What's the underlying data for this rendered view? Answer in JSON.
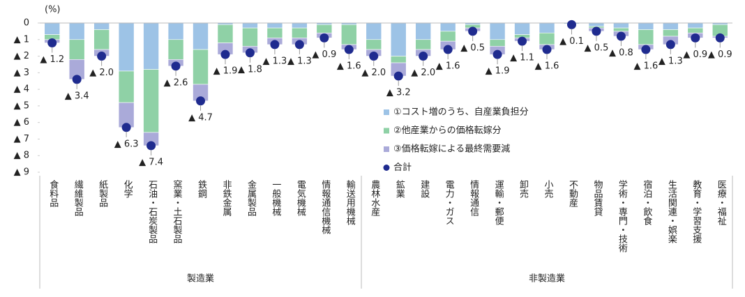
{
  "chart_data": {
    "type": "stacked_bar",
    "y_label": "(%)",
    "categories": [
      "食料品",
      "繊維製品",
      "紙製品",
      "化学",
      "石油・石炭製品",
      "窯業・土石製品",
      "鉄鋼",
      "非鉄金属",
      "金属製品",
      "一般機械",
      "電気機械",
      "情報通信機械",
      "輸送用機械",
      "農林水産",
      "鉱業",
      "建設",
      "電力・ガス",
      "情報通信",
      "運輸・郵便",
      "卸売",
      "小売",
      "不動産",
      "物品賃貸",
      "学術・専門・技術",
      "宿泊・飲食",
      "生活関連・娯楽",
      "教育・学習支援",
      "医療・福祉"
    ],
    "groups": [
      {
        "name": "製造業",
        "size": 13
      },
      {
        "name": "非製造業",
        "size": 15
      }
    ],
    "series": [
      {
        "name": "①コスト増のうち、自産業負担分",
        "color": "#9dc3e6",
        "values": [
          -0.7,
          -1.0,
          -0.4,
          -2.9,
          -2.8,
          -1.0,
          -1.6,
          -0.1,
          -0.3,
          -0.3,
          -0.3,
          -0.1,
          -0.1,
          -1.0,
          -2.0,
          -1.0,
          -0.5,
          -0.1,
          -1.0,
          -0.7,
          -0.6,
          -0.06,
          -0.2,
          -0.3,
          -0.4,
          -0.4,
          -0.3,
          -0.1
        ]
      },
      {
        "name": "②他産業からの価格転嫁分",
        "color": "#8fd1a6",
        "values": [
          -0.3,
          -1.2,
          -1.2,
          -1.9,
          -3.8,
          -1.2,
          -2.1,
          -1.1,
          -1.1,
          -0.6,
          -0.6,
          -0.5,
          -1.2,
          -0.6,
          -0.4,
          -0.6,
          -0.6,
          -0.2,
          -0.4,
          -0.2,
          -0.7,
          -0.02,
          -0.1,
          -0.2,
          -0.9,
          -0.4,
          -0.3,
          -0.7
        ]
      },
      {
        "name": "③価格転嫁による最終需要減",
        "color": "#aaaad9",
        "values": [
          -0.2,
          -1.2,
          -0.4,
          -1.5,
          -0.8,
          -0.4,
          -1.0,
          -0.7,
          -0.4,
          -0.4,
          -0.4,
          -0.3,
          -0.3,
          -0.4,
          -0.8,
          -0.4,
          -0.5,
          -0.2,
          -0.5,
          -0.2,
          -0.3,
          -0.02,
          -0.2,
          -0.3,
          -0.3,
          -0.5,
          -0.3,
          -0.1
        ]
      },
      {
        "name": "合計",
        "color": "#1f2b8f",
        "type": "dot",
        "values": [
          -1.2,
          -3.4,
          -2.0,
          -6.3,
          -7.4,
          -2.6,
          -4.7,
          -1.9,
          -1.8,
          -1.3,
          -1.3,
          -0.9,
          -1.6,
          -2.0,
          -3.2,
          -2.0,
          -1.6,
          -0.5,
          -1.9,
          -1.1,
          -1.6,
          -0.1,
          -0.5,
          -0.8,
          -1.6,
          -1.3,
          -0.9,
          -0.9
        ],
        "value_labels": [
          "▲ 1.2",
          "▲ 3.4",
          "▲ 2.0",
          "▲ 6.3",
          "▲ 7.4",
          "▲ 2.6",
          "▲ 4.7",
          "▲ 1.9",
          "▲ 1.8",
          "▲ 1.3",
          "▲ 1.3",
          "▲ 0.9",
          "▲ 1.6",
          "▲ 2.0",
          "▲ 3.2",
          "▲ 2.0",
          "▲ 1.6",
          "▲ 0.5",
          "▲ 1.9",
          "▲ 1.1",
          "▲ 1.6",
          "▲ 0.1",
          "▲ 0.5",
          "▲ 0.8",
          "▲ 1.6",
          "▲ 1.3",
          "▲ 0.9",
          "▲ 0.9"
        ]
      }
    ],
    "ylim": [
      0,
      -9
    ],
    "yticks": [
      0,
      {
        "value": -1,
        "label": "▲ 1"
      },
      {
        "value": -2,
        "label": "▲ 2"
      },
      {
        "value": -3,
        "label": "▲ 3"
      },
      {
        "value": -4,
        "label": "▲ 4"
      },
      {
        "value": -5,
        "label": "▲ 5"
      },
      {
        "value": -6,
        "label": "▲ 6"
      },
      {
        "value": -7,
        "label": "▲ 7"
      },
      {
        "value": -8,
        "label": "▲ 8"
      },
      {
        "value": -9,
        "label": "▲ 9"
      }
    ],
    "legend": "center"
  }
}
